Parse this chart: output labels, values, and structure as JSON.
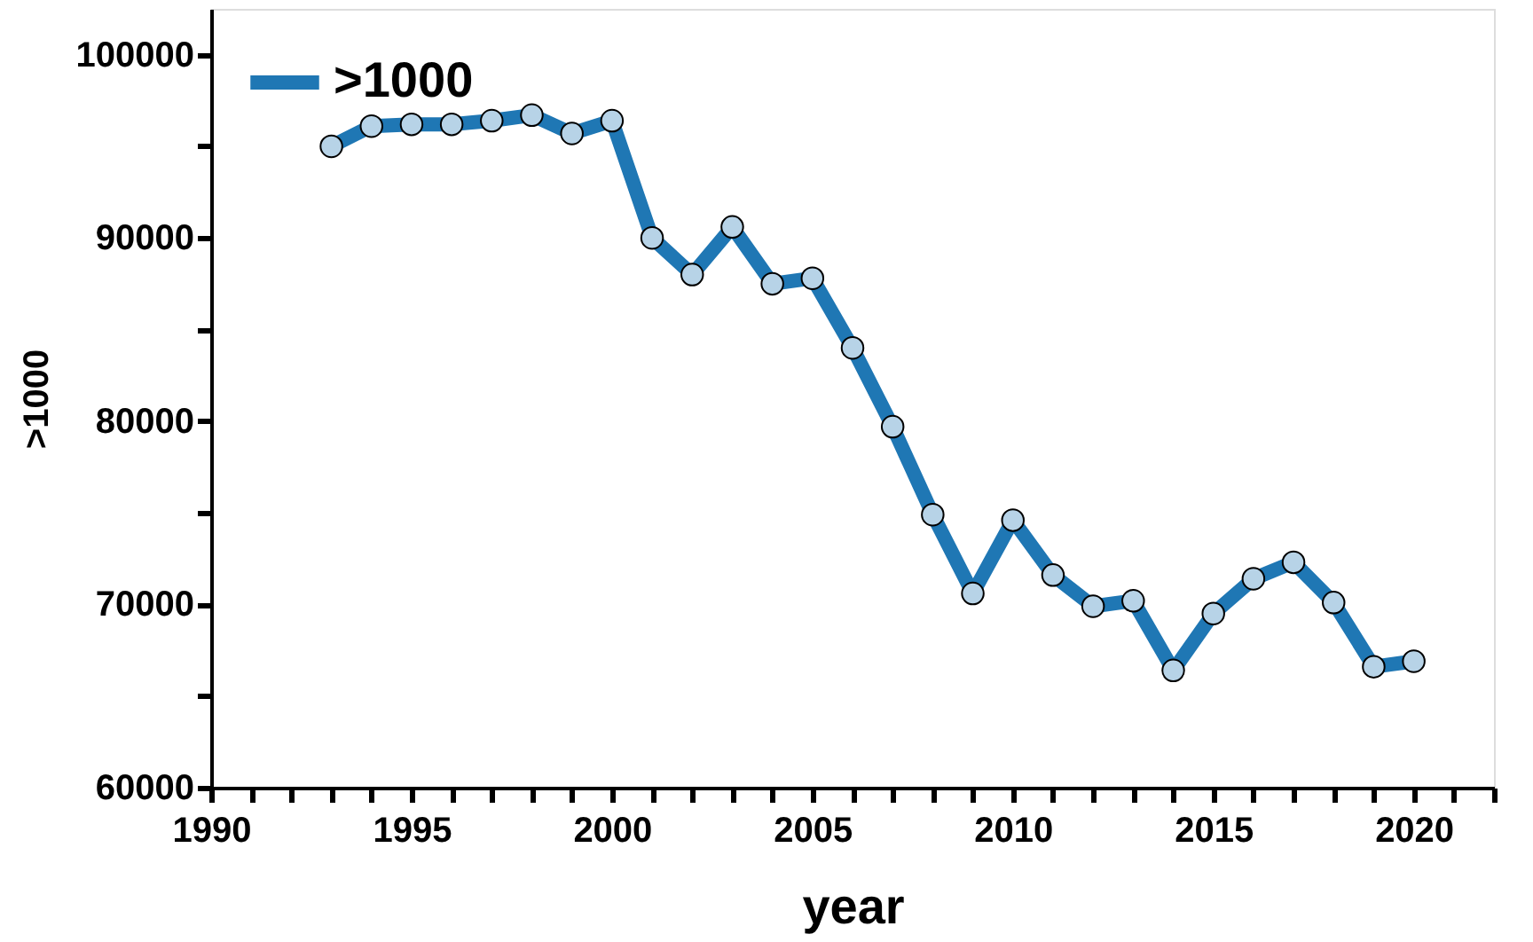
{
  "chart_data": {
    "type": "line",
    "xlabel": "year",
    "ylabel": ">1000",
    "x": [
      1993,
      1994,
      1995,
      1996,
      1997,
      1998,
      1999,
      2000,
      2001,
      2002,
      2003,
      2004,
      2005,
      2006,
      2007,
      2008,
      2009,
      2010,
      2011,
      2012,
      2013,
      2014,
      2015,
      2016,
      2017,
      2018,
      2019,
      2020
    ],
    "series": [
      {
        "name": ">1000",
        "color": "#1f77b4",
        "values": [
          95000,
          96100,
          96200,
          96200,
          96400,
          96700,
          95700,
          96400,
          90000,
          88000,
          90600,
          87500,
          87800,
          84000,
          79700,
          74900,
          70600,
          74600,
          71600,
          69900,
          70200,
          66400,
          69500,
          71400,
          72300,
          70100,
          66600,
          66900
        ]
      }
    ],
    "xlim": [
      1990,
      2022
    ],
    "xticks": [
      1990,
      {
        "value": 1991,
        "label": null
      },
      {
        "value": 1992,
        "label": null
      },
      {
        "value": 1993,
        "label": null
      },
      {
        "value": 1994,
        "label": null
      },
      1995,
      {
        "value": 1996,
        "label": null
      },
      {
        "value": 1997,
        "label": null
      },
      {
        "value": 1998,
        "label": null
      },
      {
        "value": 1999,
        "label": null
      },
      2000,
      {
        "value": 2001,
        "label": null
      },
      {
        "value": 2002,
        "label": null
      },
      {
        "value": 2003,
        "label": null
      },
      {
        "value": 2004,
        "label": null
      },
      2005,
      {
        "value": 2006,
        "label": null
      },
      {
        "value": 2007,
        "label": null
      },
      {
        "value": 2008,
        "label": null
      },
      {
        "value": 2009,
        "label": null
      },
      2010,
      {
        "value": 2011,
        "label": null
      },
      {
        "value": 2012,
        "label": null
      },
      {
        "value": 2013,
        "label": null
      },
      {
        "value": 2014,
        "label": null
      },
      2015,
      {
        "value": 2016,
        "label": null
      },
      {
        "value": 2017,
        "label": null
      },
      {
        "value": 2018,
        "label": null
      },
      {
        "value": 2019,
        "label": null
      },
      2020,
      {
        "value": 2021,
        "label": null
      },
      {
        "value": 2022,
        "label": null
      }
    ],
    "ylim": [
      60000,
      102500
    ],
    "yticks": [
      60000,
      {
        "value": 65000,
        "label": null
      },
      70000,
      {
        "value": 75000,
        "label": null
      },
      80000,
      {
        "value": 85000,
        "label": null
      },
      90000,
      {
        "value": 95000,
        "label": null
      },
      100000
    ],
    "marker": "circle",
    "line_style": "solid",
    "grid": false,
    "legend": "top left"
  }
}
